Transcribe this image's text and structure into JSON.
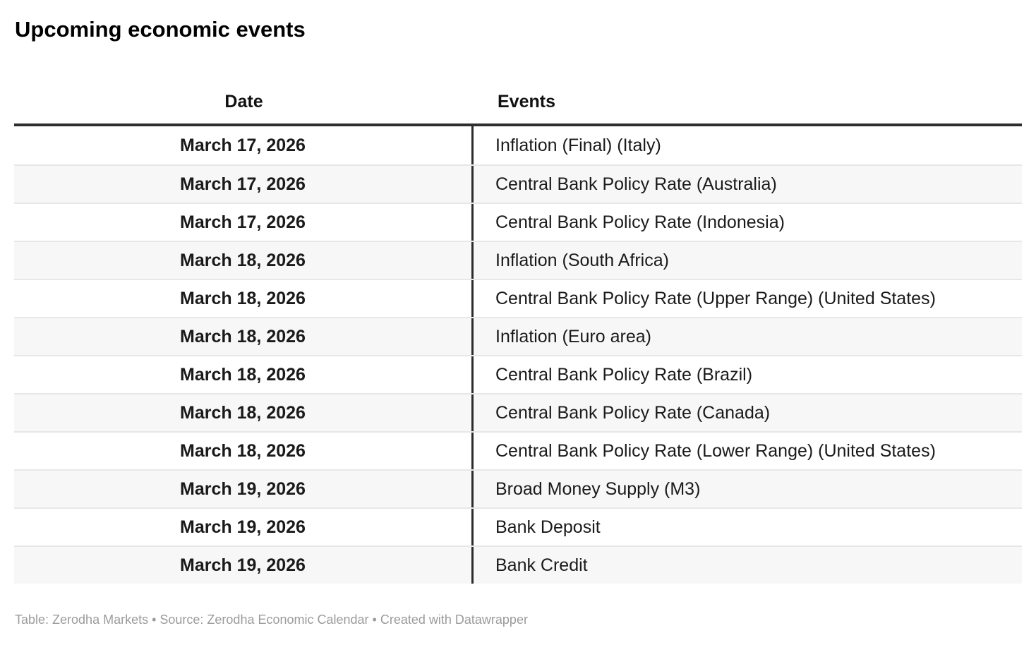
{
  "title": "Upcoming economic events",
  "table": {
    "columns": [
      {
        "key": "date",
        "label": "Date"
      },
      {
        "key": "event",
        "label": "Events"
      }
    ],
    "rows": [
      {
        "date": "March 17, 2026",
        "event": "Inflation (Final) (Italy)"
      },
      {
        "date": "March 17, 2026",
        "event": "Central Bank Policy Rate (Australia)"
      },
      {
        "date": "March 17, 2026",
        "event": "Central Bank Policy Rate (Indonesia)"
      },
      {
        "date": "March 18, 2026",
        "event": "Inflation (South Africa)"
      },
      {
        "date": "March 18, 2026",
        "event": "Central Bank Policy Rate (Upper Range) (United States)"
      },
      {
        "date": "March 18, 2026",
        "event": "Inflation (Euro area)"
      },
      {
        "date": "March 18, 2026",
        "event": "Central Bank Policy Rate (Brazil)"
      },
      {
        "date": "March 18, 2026",
        "event": "Central Bank Policy Rate (Canada)"
      },
      {
        "date": "March 18, 2026",
        "event": "Central Bank Policy Rate (Lower Range) (United States)"
      },
      {
        "date": "March 19, 2026",
        "event": "Broad Money Supply (M3)"
      },
      {
        "date": "March 19, 2026",
        "event": "Bank Deposit"
      },
      {
        "date": "March 19, 2026",
        "event": "Bank Credit"
      }
    ]
  },
  "footer": "Table: Zerodha Markets • Source: Zerodha Economic Calendar • Created with Datawrapper",
  "colors": {
    "header_rule": "#2e2e2e",
    "column_divider": "#2b2b2b",
    "row_alt_background": "#f7f7f7",
    "row_separator": "#e7e7e7",
    "text": "#1a1a1a",
    "footer_text": "#9b9b9b"
  },
  "chart_data": {
    "type": "table",
    "title": "Upcoming economic events",
    "columns": [
      "Date",
      "Events"
    ],
    "rows": [
      [
        "March 17, 2026",
        "Inflation (Final) (Italy)"
      ],
      [
        "March 17, 2026",
        "Central Bank Policy Rate (Australia)"
      ],
      [
        "March 17, 2026",
        "Central Bank Policy Rate (Indonesia)"
      ],
      [
        "March 18, 2026",
        "Inflation (South Africa)"
      ],
      [
        "March 18, 2026",
        "Central Bank Policy Rate (Upper Range) (United States)"
      ],
      [
        "March 18, 2026",
        "Inflation (Euro area)"
      ],
      [
        "March 18, 2026",
        "Central Bank Policy Rate (Brazil)"
      ],
      [
        "March 18, 2026",
        "Central Bank Policy Rate (Canada)"
      ],
      [
        "March 18, 2026",
        "Central Bank Policy Rate (Lower Range) (United States)"
      ],
      [
        "March 19, 2026",
        "Broad Money Supply (M3)"
      ],
      [
        "March 19, 2026",
        "Bank Deposit"
      ],
      [
        "March 19, 2026",
        "Bank Credit"
      ]
    ],
    "layout": {
      "date_column_align": "center",
      "events_column_align": "left",
      "alternating_row_shading": true,
      "footer": "Table: Zerodha Markets • Source: Zerodha Economic Calendar • Created with Datawrapper"
    }
  }
}
